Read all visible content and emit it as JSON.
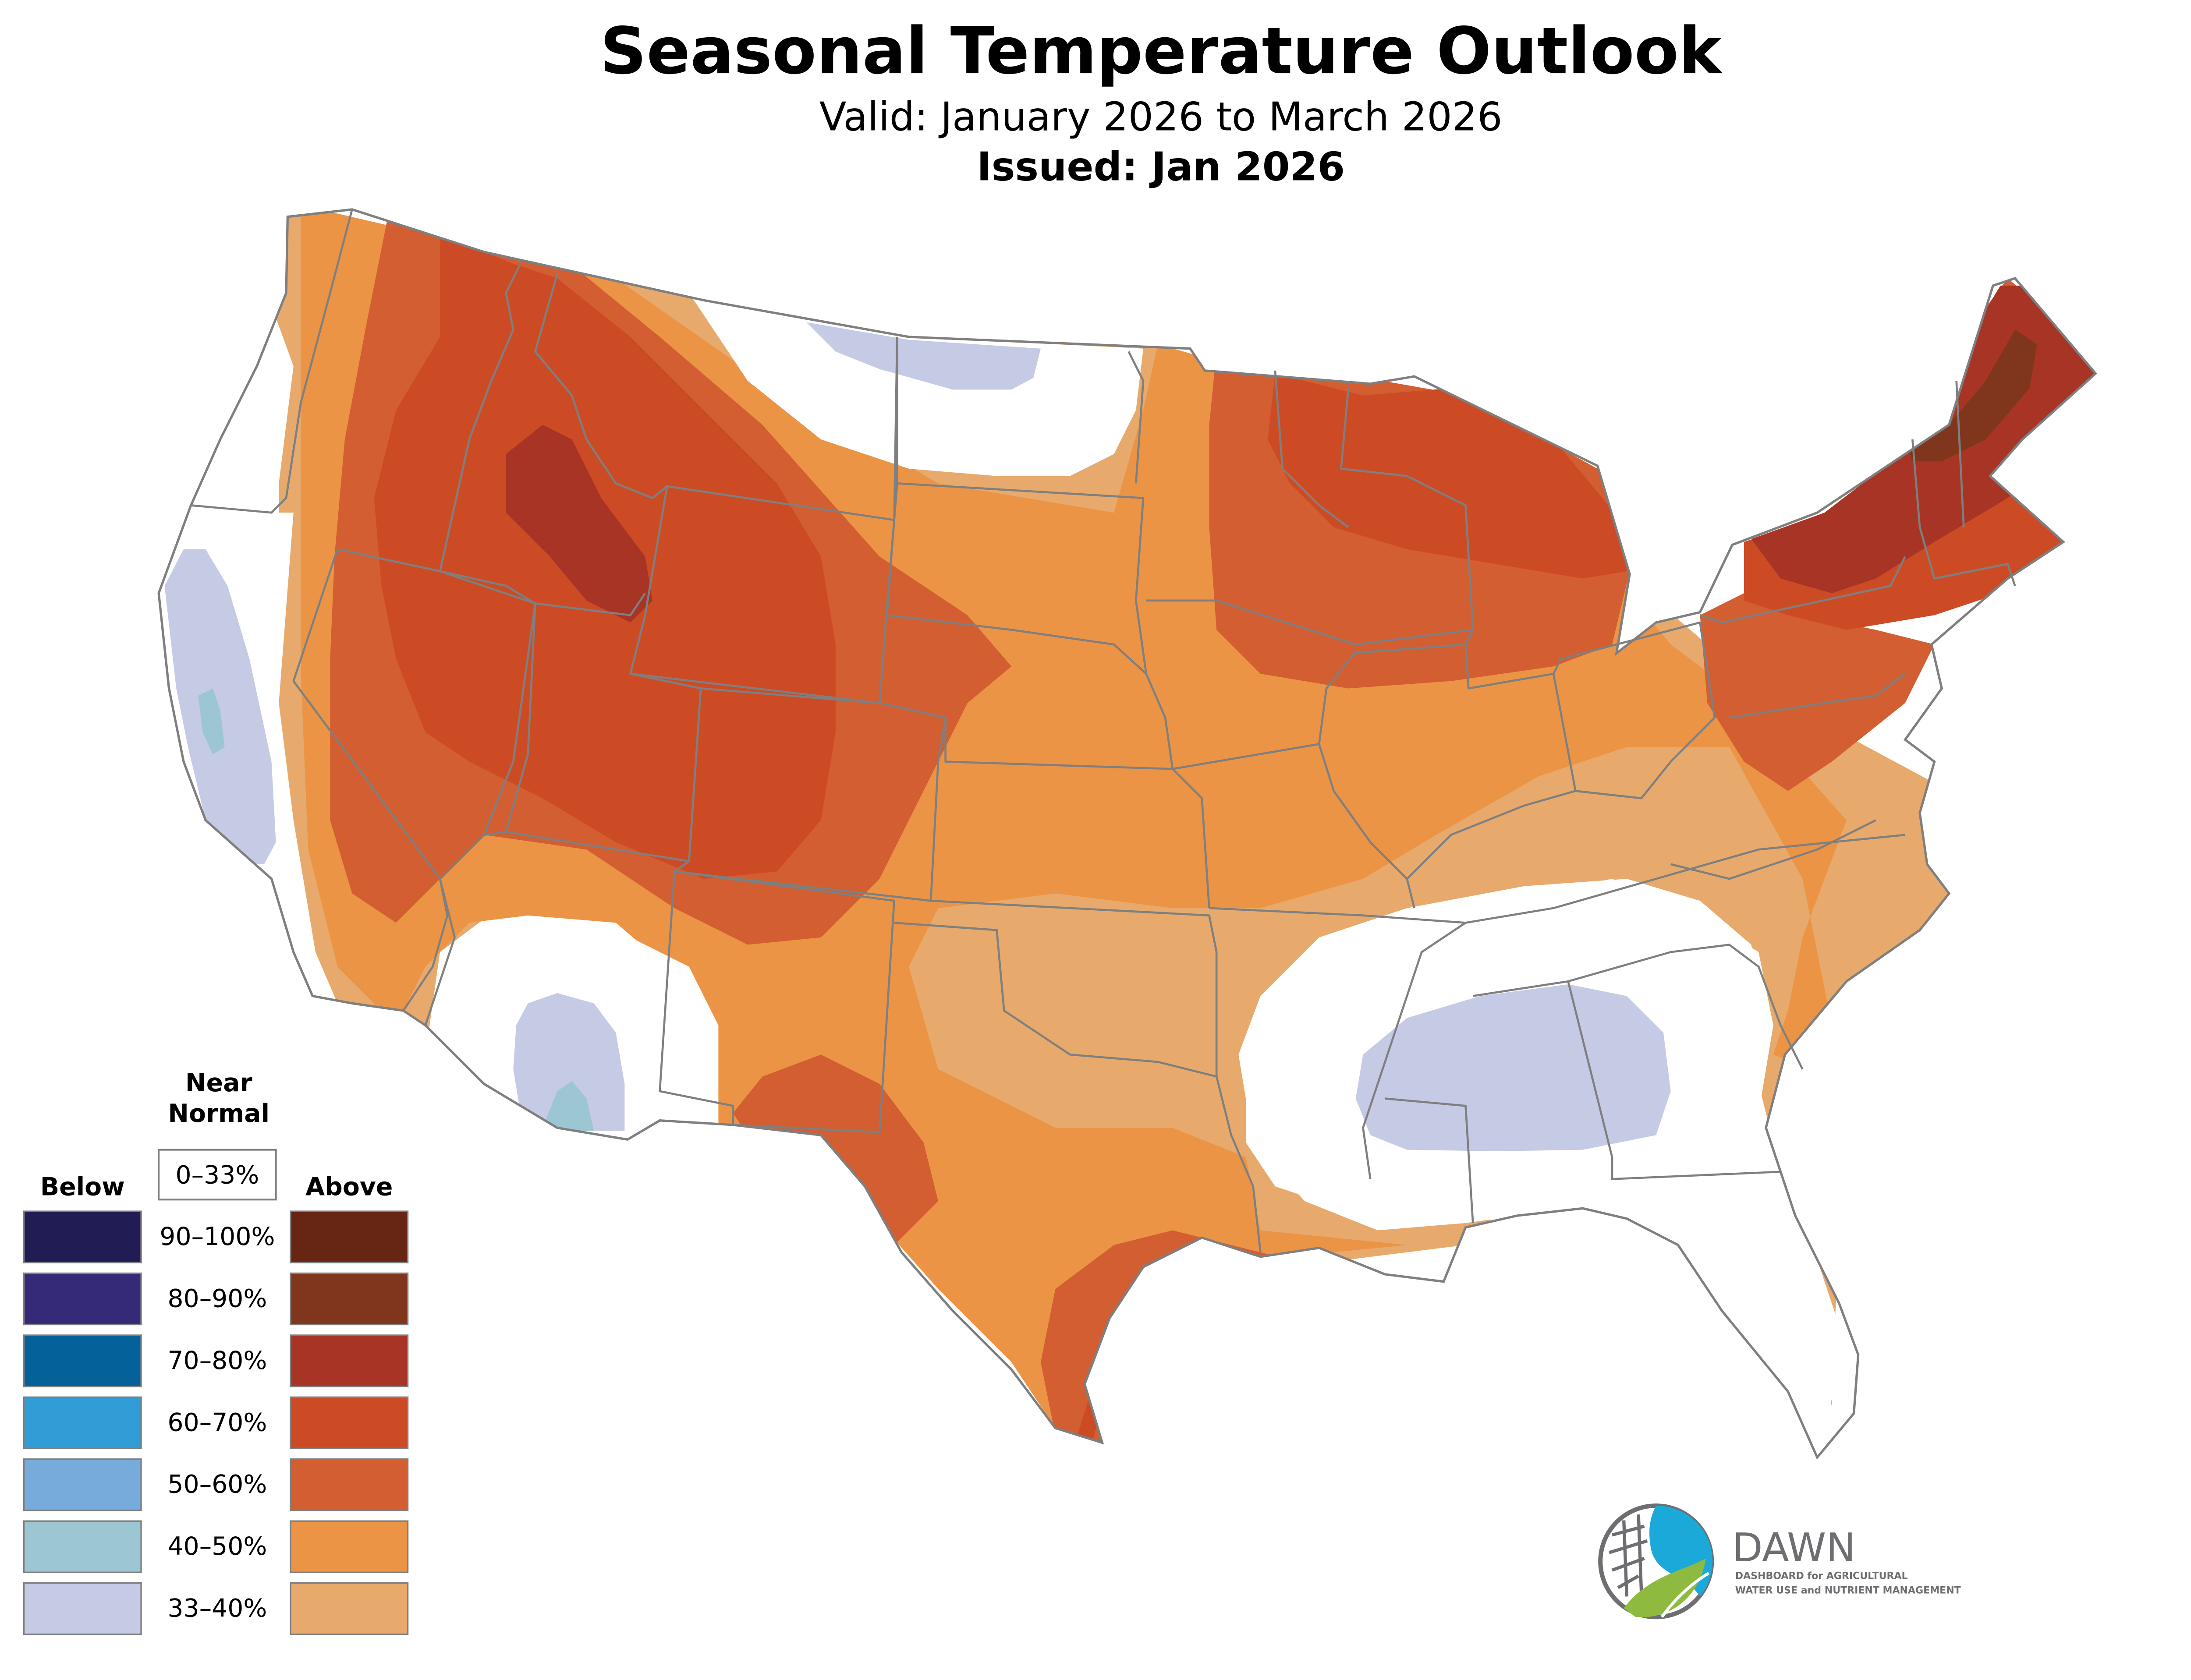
{
  "header": {
    "title": "Seasonal Temperature Outlook",
    "valid_text": "Valid: January 2026 to March 2026",
    "issued_text": "Issued: Jan 2026"
  },
  "legend": {
    "near_normal_line1": "Near",
    "near_normal_line2": "Normal",
    "near_normal_range": "0–33%",
    "below_label": "Below",
    "above_label": "Above",
    "ranges": [
      "90–100%",
      "80–90%",
      "70–80%",
      "60–70%",
      "50–60%",
      "40–50%",
      "33–40%"
    ],
    "below_colors": [
      "#221c54",
      "#352a78",
      "#056199",
      "#319dd6",
      "#77abdc",
      "#9cc6d2",
      "#c5cae5"
    ],
    "above_colors": [
      "#672614",
      "#80361c",
      "#a73424",
      "#cc4b25",
      "#d35e31",
      "#ec9445",
      "#e7aa6c"
    ]
  },
  "map_regions": [
    {
      "category": "Above",
      "probability": "33–40%",
      "color": "#e7aa6c"
    },
    {
      "category": "Above",
      "probability": "40–50%",
      "color": "#ec9445"
    },
    {
      "category": "Above",
      "probability": "50–60%",
      "color": "#d35e31"
    },
    {
      "category": "Above",
      "probability": "60–70%",
      "color": "#cc4b25"
    },
    {
      "category": "Above",
      "probability": "70–80%",
      "color": "#a73424"
    },
    {
      "category": "Above",
      "probability": "80–90%",
      "color": "#80361c"
    },
    {
      "category": "Below",
      "probability": "33–40%",
      "color": "#c5cae5"
    },
    {
      "category": "Below",
      "probability": "40–50%",
      "color": "#9cc6d2"
    },
    {
      "category": "Near Normal",
      "probability": "0–33%",
      "color": "#ffffff"
    }
  ],
  "logo": {
    "name": "DAWN",
    "tagline_line1": "DASHBOARD for AGRICULTURAL",
    "tagline_line2": "WATER USE and NUTRIENT MANAGEMENT",
    "blue": "#1aa9d8",
    "green": "#8dba3f",
    "gray": "#6d6e71"
  }
}
